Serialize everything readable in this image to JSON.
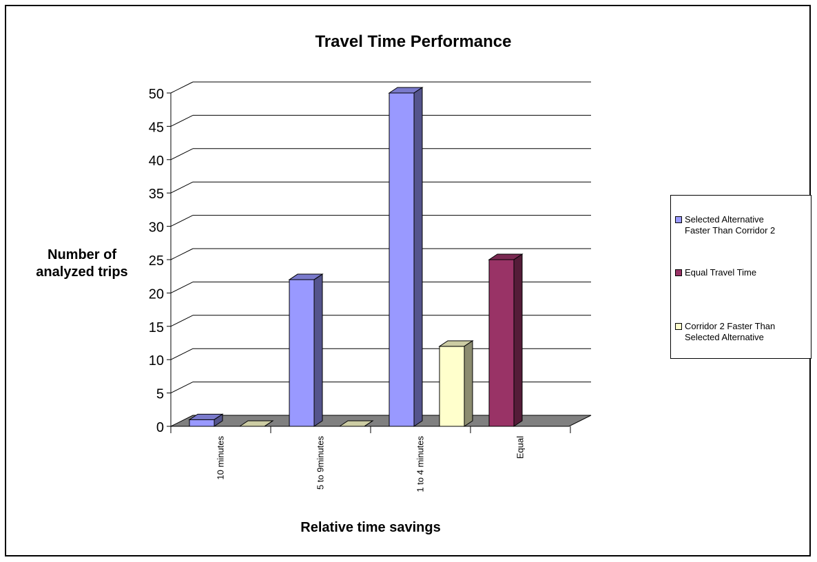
{
  "chart_data": {
    "type": "bar",
    "title": "Travel Time Performance",
    "xlabel": "Relative time savings",
    "ylabel": "Number of\nanalyzed trips",
    "ylim": [
      0,
      50
    ],
    "yticks": [
      0,
      5,
      10,
      15,
      20,
      25,
      30,
      35,
      40,
      45,
      50
    ],
    "categories": [
      "10 minutes",
      "5 to 9minutes",
      "1 to 4 minutes",
      "Equal"
    ],
    "series": [
      {
        "name": "Selected Alternative Faster Than Corridor 2",
        "legend_text": "Selected Alternative\nFaster Than Corridor 2",
        "color": "#9999ff",
        "values": [
          1,
          22,
          50,
          null
        ]
      },
      {
        "name": "Equal Travel Time",
        "legend_text": "Equal Travel Time",
        "color": "#993366",
        "values": [
          null,
          null,
          null,
          25
        ]
      },
      {
        "name": "Corridor 2 Faster Than Selected Alternative",
        "legend_text": " Corridor 2 Faster Than\nSelected Alternative",
        "color": "#ffffcc",
        "values": [
          0,
          0,
          12,
          null
        ]
      }
    ],
    "grid": true,
    "legend": "right",
    "style": "3d-clustered-column"
  }
}
